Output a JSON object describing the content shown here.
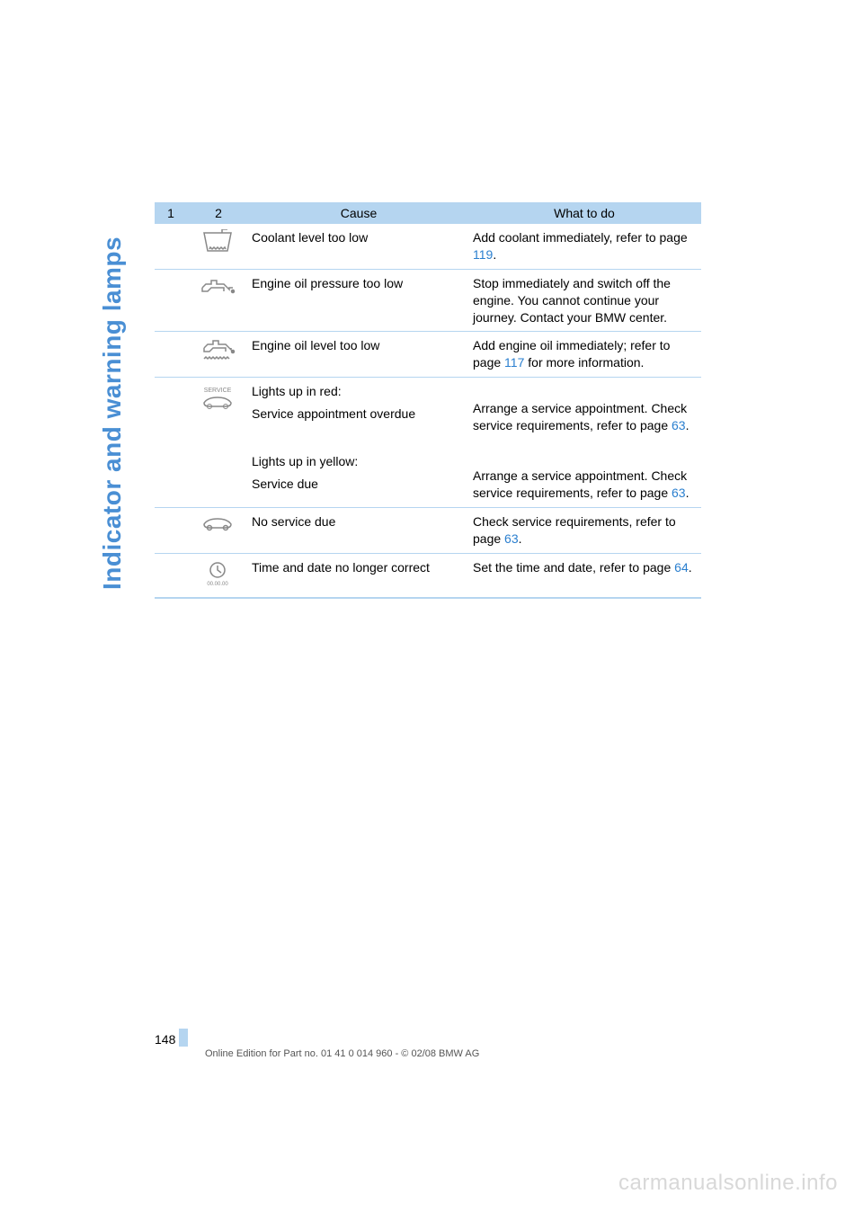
{
  "section_title": "Indicator and warning lamps",
  "table": {
    "headers": {
      "col1": "1",
      "col2": "2",
      "cause": "Cause",
      "action": "What to do"
    },
    "rows": [
      {
        "icon": "coolant",
        "cause": "Coolant level too low",
        "action_pre": "Add coolant immediately, refer to page",
        "action_link": "119",
        "action_post": "."
      },
      {
        "icon": "oilpressure",
        "cause": "Engine oil pressure too low",
        "action_pre": "Stop immediately and switch off the engine. You cannot continue your journey. Contact your BMW center.",
        "action_link": "",
        "action_post": ""
      },
      {
        "icon": "oillevel",
        "cause": "Engine oil level too low",
        "action_pre": "Add engine oil immediately; refer to page",
        "action_link": "117",
        "action_post": " for more information."
      },
      {
        "icon": "service",
        "cause_lines": [
          "Lights up in red:",
          "Service appointment overdue",
          "",
          "Lights up in yellow:",
          "Service due"
        ],
        "action_lines": [
          "",
          "Arrange a service appointment. Check service requirements, refer to page |63|.",
          "",
          "",
          "Arrange a service appointment. Check service requirements, refer to page |63|."
        ]
      },
      {
        "icon": "noservice",
        "cause": "No service due",
        "action_pre": "Check service requirements, refer to page",
        "action_link": "63",
        "action_post": "."
      },
      {
        "icon": "clock",
        "cause": "Time and date no longer correct",
        "action_pre": "Set the time and date, refer to page",
        "action_link": "64",
        "action_post": "."
      }
    ]
  },
  "footer": {
    "page_number": "148",
    "edition_text": "Online Edition for Part no. 01 41 0 014 960 - © 02/08 BMW AG"
  },
  "watermark": "carmanualsonline.info",
  "colors": {
    "header_bg": "#b5d5f0",
    "link": "#2a7fcf",
    "sidebar": "#4a8fd4",
    "watermark": "#d8d8d8",
    "icon_stroke": "#888888"
  }
}
